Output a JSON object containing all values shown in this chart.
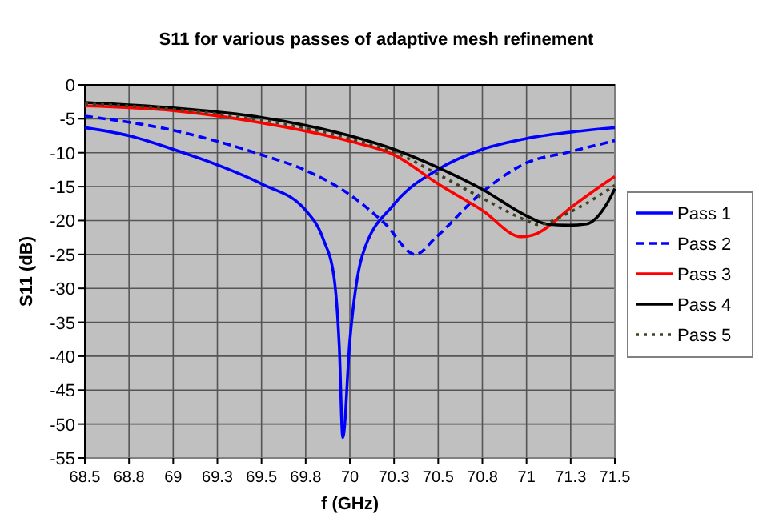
{
  "chart_data": {
    "type": "line",
    "title": "S11 for various passes of adaptive mesh refinement",
    "xlabel": "f (GHz)",
    "ylabel": "S11 (dB)",
    "xlim": [
      68.5,
      71.5
    ],
    "ylim": [
      -55,
      0
    ],
    "xticks": [
      68.5,
      {
        "value": 68.75,
        "label": "68.8"
      },
      69,
      {
        "value": 69.25,
        "label": "69.3"
      },
      69.5,
      {
        "value": 69.75,
        "label": "69.8"
      },
      70,
      {
        "value": 70.25,
        "label": "70.3"
      },
      70.5,
      {
        "value": 70.75,
        "label": "70.8"
      },
      71,
      {
        "value": 71.25,
        "label": "71.3"
      },
      71.5
    ],
    "yticks": [
      -55,
      -50,
      -45,
      -40,
      -35,
      -30,
      -25,
      -20,
      -15,
      -10,
      -5,
      0
    ],
    "grid": true,
    "legend": "right",
    "marker": "none",
    "series": [
      {
        "name": "Pass 1",
        "color": "#0000ff",
        "line_style": "solid",
        "x": [
          68.5,
          68.75,
          69,
          69.25,
          69.5,
          69.75,
          69.85,
          69.91,
          69.94,
          69.96,
          70.0,
          70.07,
          70.25,
          70.49,
          70.75,
          71,
          71.24,
          71.5
        ],
        "values": [
          -6.3,
          -7.5,
          -9.5,
          -11.8,
          -14.6,
          -18.5,
          -22.8,
          -28.3,
          -38.5,
          -52,
          -37.7,
          -25.2,
          -17.6,
          -12.6,
          -9.5,
          -7.9,
          -7,
          -6.3
        ]
      },
      {
        "name": "Pass 2",
        "color": "#0000ff",
        "line_style": "dashed",
        "x": [
          68.5,
          69,
          69.5,
          69.75,
          70,
          70.2,
          70.37,
          70.49,
          70.75,
          71,
          71.24,
          71.5
        ],
        "values": [
          -4.6,
          -6.7,
          -10.3,
          -12.6,
          -16.2,
          -20.5,
          -25,
          -22.4,
          -15.8,
          -11.5,
          -9.9,
          -8.2
        ]
      },
      {
        "name": "Pass 3",
        "color": "#ff0000",
        "line_style": "solid",
        "x": [
          68.5,
          69,
          69.5,
          70,
          70.25,
          70.5,
          70.75,
          70.97,
          71.06,
          71.25,
          71.46,
          71.5
        ],
        "values": [
          -3.1,
          -3.8,
          -5.6,
          -8.3,
          -10.3,
          -14.6,
          -18.5,
          -22.4,
          -21.9,
          -18.1,
          -14.2,
          -13.5
        ]
      },
      {
        "name": "Pass 4",
        "color": "#000000",
        "line_style": "solid",
        "x": [
          68.5,
          69,
          69.5,
          70,
          70.25,
          70.5,
          70.75,
          71,
          71.11,
          71.24,
          71.34,
          71.46,
          71.5
        ],
        "values": [
          -2.6,
          -3.4,
          -4.8,
          -7.5,
          -9.5,
          -12.2,
          -15.4,
          -19.3,
          -20.5,
          -20.7,
          -20.5,
          -17.3,
          -15.3
        ]
      },
      {
        "name": "Pass 5",
        "color": "#404020",
        "line_style": "dotted",
        "x": [
          68.5,
          69,
          69.5,
          70,
          70.25,
          70.5,
          70.75,
          71,
          71.06,
          71.25,
          71.46,
          71.5
        ],
        "values": [
          -2.8,
          -3.6,
          -5.2,
          -7.9,
          -9.9,
          -13.2,
          -16.7,
          -20,
          -20.6,
          -18.7,
          -15.5,
          -14.8
        ]
      }
    ]
  }
}
